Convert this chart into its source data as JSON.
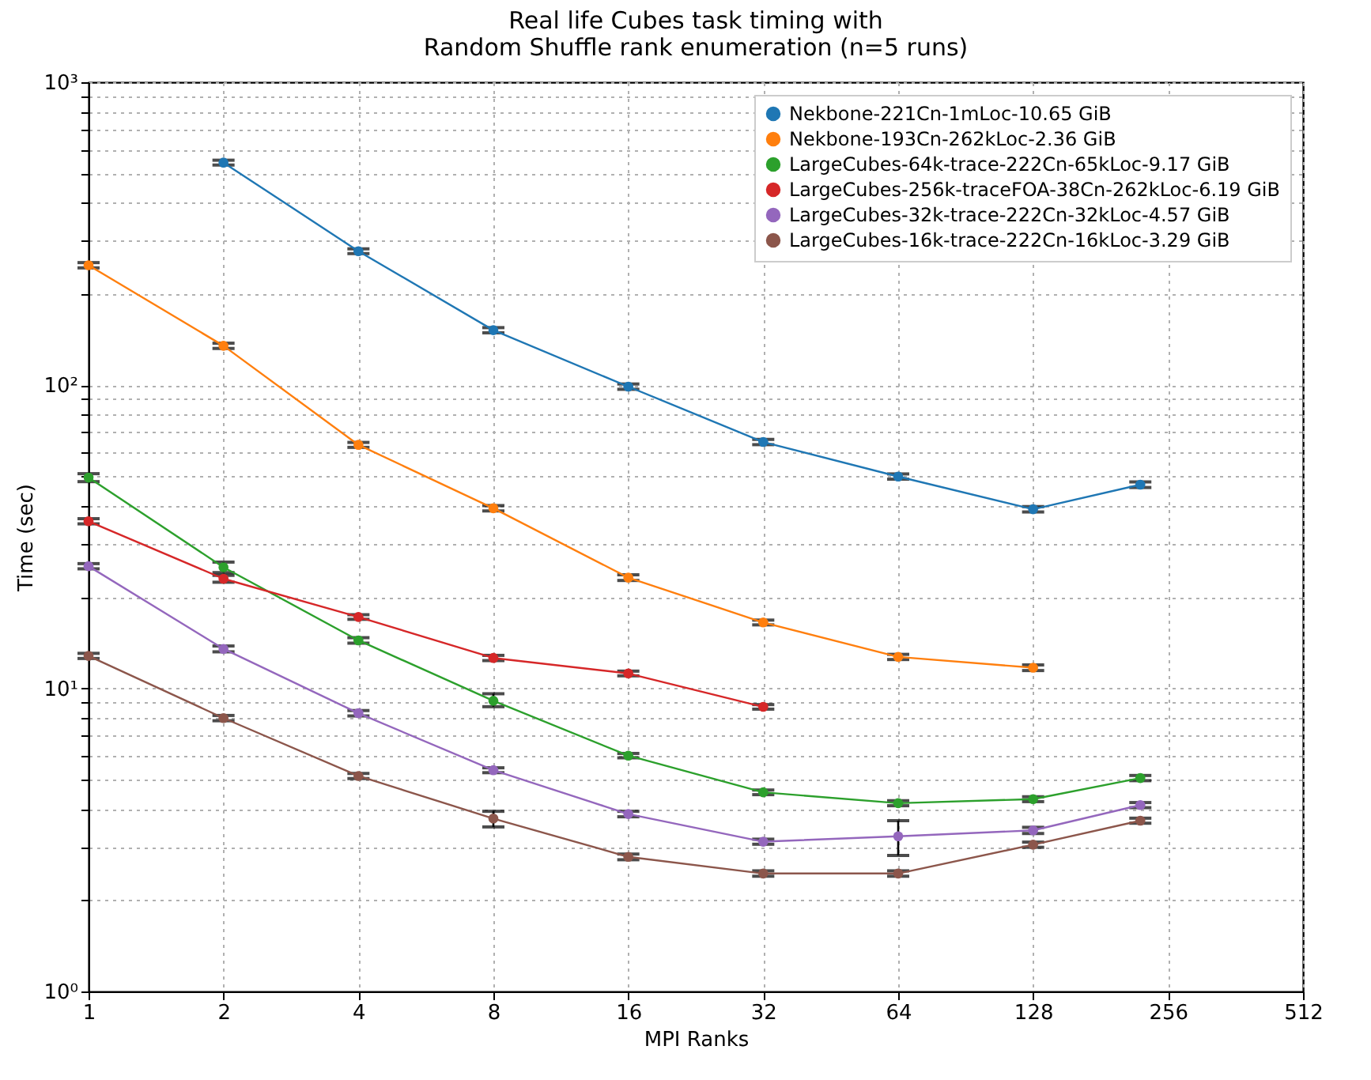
{
  "chart_data": {
    "type": "line",
    "title": "Real life Cubes task timing with\nRandom Shuffle rank enumeration (n=5 runs)",
    "xlabel": "MPI Ranks",
    "ylabel": "Time (sec)",
    "log": "xy",
    "grid": true,
    "legend": "top right",
    "marker": "circle",
    "line_style": "solid",
    "xlim": [
      1,
      512
    ],
    "xticks": [
      1,
      2,
      4,
      8,
      16,
      32,
      64,
      128,
      256,
      512
    ],
    "ylim": [
      1,
      1000
    ],
    "yticks": [
      {
        "value": 1,
        "label": "10⁰"
      },
      {
        "value": 2,
        "label": null
      },
      {
        "value": 3,
        "label": null
      },
      {
        "value": 4,
        "label": null
      },
      {
        "value": 5,
        "label": null
      },
      {
        "value": 6,
        "label": null
      },
      {
        "value": 7,
        "label": null
      },
      {
        "value": 8,
        "label": null
      },
      {
        "value": 9,
        "label": null
      },
      {
        "value": 10,
        "label": "10¹"
      },
      {
        "value": 20,
        "label": null
      },
      {
        "value": 30,
        "label": null
      },
      {
        "value": 40,
        "label": null
      },
      {
        "value": 50,
        "label": null
      },
      {
        "value": 60,
        "label": null
      },
      {
        "value": 70,
        "label": null
      },
      {
        "value": 80,
        "label": null
      },
      {
        "value": 90,
        "label": null
      },
      {
        "value": 100,
        "label": "10²"
      },
      {
        "value": 200,
        "label": null
      },
      {
        "value": 300,
        "label": null
      },
      {
        "value": 400,
        "label": null
      },
      {
        "value": 500,
        "label": null
      },
      {
        "value": 600,
        "label": null
      },
      {
        "value": 700,
        "label": null
      },
      {
        "value": 800,
        "label": null
      },
      {
        "value": 900,
        "label": null
      },
      {
        "value": 1000,
        "label": "10³"
      }
    ],
    "series": [
      {
        "name": "Nekbone-221Cn-1mLoc-10.65 GiB",
        "color": "#1f77b4",
        "x": [
          2,
          4,
          8,
          16,
          32,
          64,
          128,
          222
        ],
        "values": [
          543,
          277,
          152,
          99,
          65,
          50,
          39,
          47
        ],
        "errors": [
          10,
          5,
          3,
          2,
          1.3,
          1,
          0.8,
          1
        ]
      },
      {
        "name": "Nekbone-193Cn-262kLoc-2.36 GiB",
        "color": "#ff7f0e",
        "x": [
          1,
          2,
          4,
          8,
          16,
          32,
          64,
          128
        ],
        "values": [
          249,
          135,
          63.6,
          39.3,
          23.2,
          16.5,
          12.7,
          11.7
        ],
        "errors": [
          5,
          2.7,
          1.2,
          0.8,
          0.5,
          0.3,
          0.25,
          0.25
        ]
      },
      {
        "name": "LargeCubes-64k-trace-222Cn-65kLoc-9.17 GiB",
        "color": "#2ca02c",
        "x": [
          1,
          2,
          4,
          8,
          16,
          32,
          64,
          128,
          222
        ],
        "values": [
          49.6,
          25.1,
          14.4,
          9.1,
          6.0,
          4.54,
          4.18,
          4.31,
          5.06
        ],
        "errors": [
          1.5,
          1,
          0.3,
          [
            8.7,
            9.6
          ],
          0.1,
          0.08,
          0.08,
          0.08,
          0.1
        ]
      },
      {
        "name": "LargeCubes-256k-traceFOA-38Cn-262kLoc-6.19 GiB",
        "color": "#d62728",
        "x": [
          1,
          2,
          4,
          8,
          16,
          32
        ],
        "values": [
          35.6,
          23.0,
          17.2,
          12.6,
          11.2,
          8.69
        ],
        "errors": [
          0.7,
          0.6,
          0.3,
          0.25,
          0.2,
          0.15
        ]
      },
      {
        "name": "LargeCubes-32k-trace-222Cn-32kLoc-4.57 GiB",
        "color": "#9467bd",
        "x": [
          1,
          2,
          4,
          8,
          16,
          32,
          64,
          128,
          222
        ],
        "values": [
          25.3,
          13.5,
          8.28,
          5.37,
          3.85,
          3.12,
          3.25,
          3.4,
          4.12
        ],
        "errors": [
          0.5,
          0.3,
          0.17,
          0.1,
          0.08,
          0.06,
          [
            2.81,
            3.66
          ],
          0.08,
          0.08
        ]
      },
      {
        "name": "LargeCubes-16k-trace-222Cn-16kLoc-3.29 GiB",
        "color": "#8c564b",
        "x": [
          1,
          2,
          4,
          8,
          16,
          32,
          64,
          128,
          222
        ],
        "values": [
          12.8,
          7.98,
          5.14,
          3.72,
          2.78,
          2.45,
          2.45,
          3.05,
          3.66
        ],
        "errors": [
          0.25,
          0.16,
          0.1,
          [
            3.49,
            3.93
          ],
          0.06,
          0.05,
          0.05,
          0.06,
          0.07
        ]
      }
    ]
  }
}
